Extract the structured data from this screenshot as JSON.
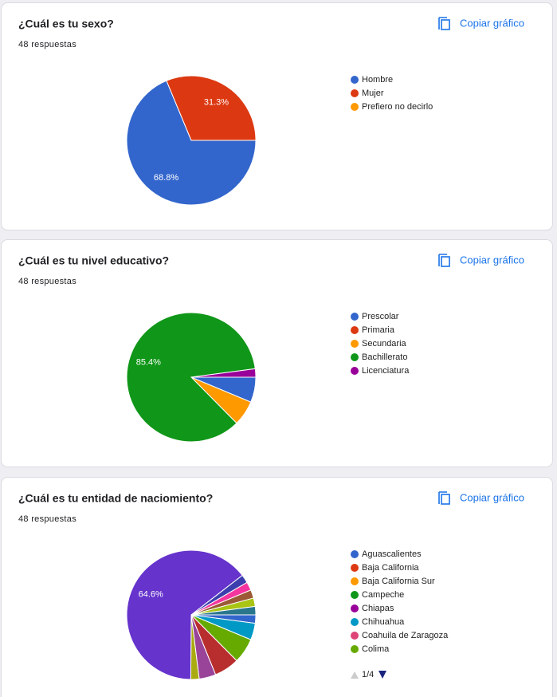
{
  "copy_label": "Copiar gráfico",
  "chart_data": [
    {
      "type": "pie",
      "title": "¿Cuál es tu sexo?",
      "subtitle": "48 respuestas",
      "categories": [
        "Hombre",
        "Mujer",
        "Prefiero no decirlo"
      ],
      "values": [
        68.8,
        31.3,
        0
      ],
      "value_labels": [
        "68.8%",
        "31.3%",
        null
      ],
      "colors": [
        "#3366cc",
        "#dc3912",
        "#ff9900"
      ]
    },
    {
      "type": "pie",
      "title": "¿Cuál es tu nivel educativo?",
      "subtitle": "48 respuestas",
      "categories": [
        "Prescolar",
        "Primaria",
        "Secundaria",
        "Bachillerato",
        "Licenciatura"
      ],
      "values": [
        6.3,
        0,
        6.3,
        85.4,
        2.1
      ],
      "value_labels": [
        null,
        null,
        null,
        "85.4%",
        null
      ],
      "colors": [
        "#3366cc",
        "#dc3912",
        "#ff9900",
        "#109618",
        "#990099"
      ]
    },
    {
      "type": "pie",
      "title": "¿Cuál es tu entidad de naciomiento?",
      "subtitle": "48 respuestas",
      "categories": [
        "Aguascalientes",
        "Baja California",
        "Baja California Sur",
        "Campeche",
        "Chiapas",
        "Chihuahua",
        "Coahuila de Zaragoza",
        "Colima",
        null,
        null,
        null,
        null,
        null,
        null,
        null,
        null,
        null
      ],
      "values": [
        2.1,
        0,
        0,
        0,
        0,
        4.2,
        0,
        6.3,
        6.3,
        4.2,
        2.1,
        64.6,
        2.1,
        2.1,
        2.1,
        2.1,
        2.1
      ],
      "value_labels": [
        null,
        null,
        null,
        null,
        null,
        null,
        null,
        null,
        null,
        null,
        null,
        "64.6%",
        null,
        null,
        null,
        null,
        null
      ],
      "colors": [
        "#3366cc",
        "#dc3912",
        "#ff9900",
        "#109618",
        "#990099",
        "#0099c6",
        "#dd4477",
        "#66aa00",
        "#b82e2e",
        "#994499",
        "#aaaa11",
        "#6633cc",
        "#3b3eac",
        "#f4359e",
        "#9c5935",
        "#a9c413",
        "#2a778d"
      ],
      "legend_page": "1/4"
    }
  ]
}
